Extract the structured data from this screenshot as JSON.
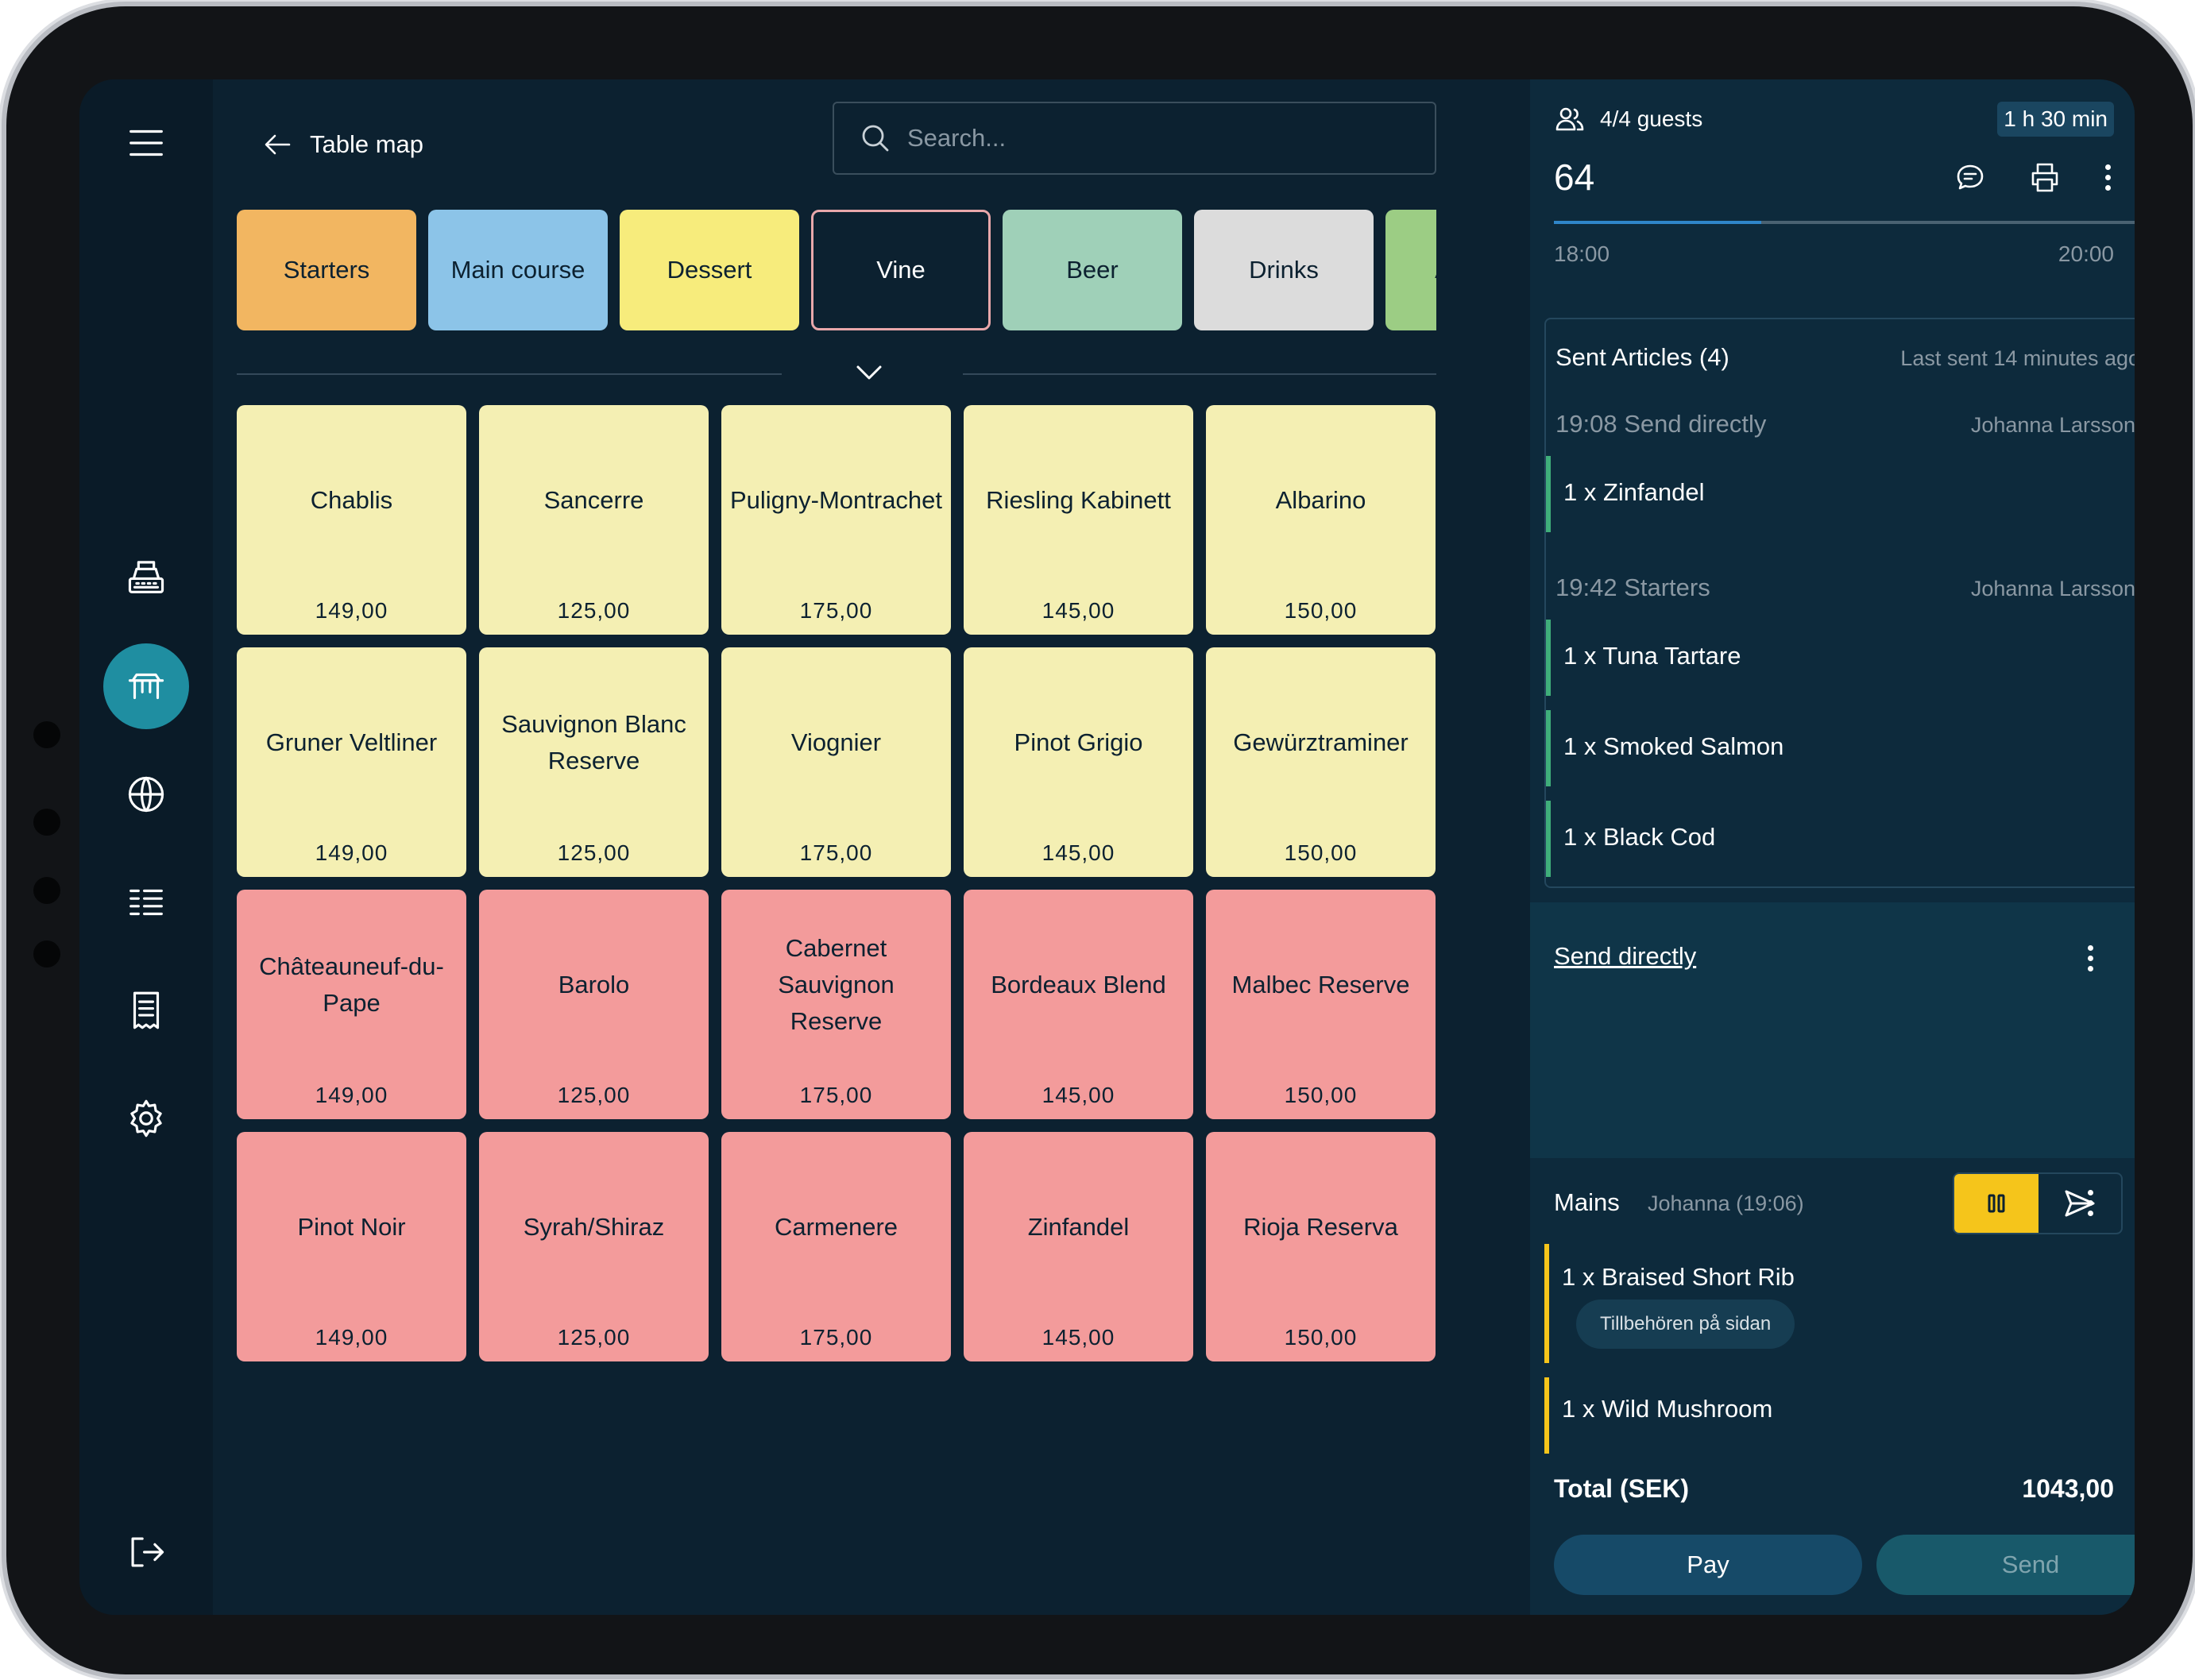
{
  "colors": {
    "screen_bg": "#0c2130",
    "sidebar_bg": "#0a1b28",
    "panel_bg": "#0d2a3c",
    "active_nav": "#1f8ea1",
    "white_wine_tile": "#f4efb3",
    "red_wine_tile": "#f39b9b",
    "sent_accent": "#3fae7a",
    "hold_accent": "#f5c51b"
  },
  "sidebar": {
    "items": [
      {
        "icon": "menu-icon"
      },
      {
        "icon": "cash-register-icon"
      },
      {
        "icon": "table-icon",
        "active": true
      },
      {
        "icon": "globe-icon"
      },
      {
        "icon": "list-icon"
      },
      {
        "icon": "receipt-icon"
      },
      {
        "icon": "settings-icon"
      },
      {
        "icon": "logout-icon"
      }
    ]
  },
  "header": {
    "back_label": "Table map",
    "search_placeholder": "Search..."
  },
  "categories": [
    {
      "label": "Starters",
      "color": "#f2b661"
    },
    {
      "label": "Main course",
      "color": "#8cc4e8"
    },
    {
      "label": "Dessert",
      "color": "#f7ec7c"
    },
    {
      "label": "Vine",
      "color": "#0c2130",
      "selected": true
    },
    {
      "label": "Beer",
      "color": "#9fd0b8"
    },
    {
      "label": "Drinks",
      "color": "#dcdcdc"
    },
    {
      "label": "Alcohol",
      "color": "#9ccd84"
    }
  ],
  "products": [
    {
      "name": "Chablis",
      "price": "149,00",
      "type": "white"
    },
    {
      "name": "Sancerre",
      "price": "125,00",
      "type": "white"
    },
    {
      "name": "Puligny-Montrachet",
      "price": "175,00",
      "type": "white"
    },
    {
      "name": "Riesling Kabinett",
      "price": "145,00",
      "type": "white"
    },
    {
      "name": "Albarino",
      "price": "150,00",
      "type": "white"
    },
    {
      "name": "Gruner Veltliner",
      "price": "149,00",
      "type": "white"
    },
    {
      "name": "Sauvignon Blanc Reserve",
      "price": "125,00",
      "type": "white"
    },
    {
      "name": "Viognier",
      "price": "175,00",
      "type": "white"
    },
    {
      "name": "Pinot Grigio",
      "price": "145,00",
      "type": "white"
    },
    {
      "name": "Gewürztraminer",
      "price": "150,00",
      "type": "white"
    },
    {
      "name": "Châteauneuf-du-Pape",
      "price": "149,00",
      "type": "red"
    },
    {
      "name": "Barolo",
      "price": "125,00",
      "type": "red"
    },
    {
      "name": "Cabernet Sauvignon Reserve",
      "price": "175,00",
      "type": "red"
    },
    {
      "name": "Bordeaux Blend",
      "price": "145,00",
      "type": "red"
    },
    {
      "name": "Malbec Reserve",
      "price": "150,00",
      "type": "red"
    },
    {
      "name": "Pinot Noir",
      "price": "149,00",
      "type": "red"
    },
    {
      "name": "Syrah/Shiraz",
      "price": "125,00",
      "type": "red"
    },
    {
      "name": "Carmenere",
      "price": "175,00",
      "type": "red"
    },
    {
      "name": "Zinfandel",
      "price": "145,00",
      "type": "red"
    },
    {
      "name": "Rioja Reserva",
      "price": "150,00",
      "type": "red"
    }
  ],
  "order": {
    "guests": "4/4 guests",
    "duration": "1 h 30 min",
    "table_number": "64",
    "timeline": {
      "start": "18:00",
      "end": "20:00",
      "progress": 0.33
    },
    "sent": {
      "title": "Sent Articles (4)",
      "last_sent": "Last sent 14 minutes ago",
      "groups": [
        {
          "header": "19:08 Send directly",
          "author": "Johanna Larsson",
          "items": [
            "1 x Zinfandel"
          ]
        },
        {
          "header": "19:42 Starters",
          "author": "Johanna Larsson",
          "items": [
            "1 x Tuna Tartare",
            "1 x Smoked Salmon",
            "1 x Black Cod"
          ]
        }
      ]
    },
    "pending_label": "Send directly",
    "mains": {
      "title": "Mains",
      "meta": "Johanna (19:06)",
      "items": [
        {
          "name": "1 x Braised Short Rib",
          "modifier": "Tillbehören på sidan"
        },
        {
          "name": "1 x Wild Mushroom"
        }
      ]
    },
    "total_label": "Total (SEK)",
    "total_value": "1043,00",
    "pay_label": "Pay",
    "send_label": "Send"
  }
}
